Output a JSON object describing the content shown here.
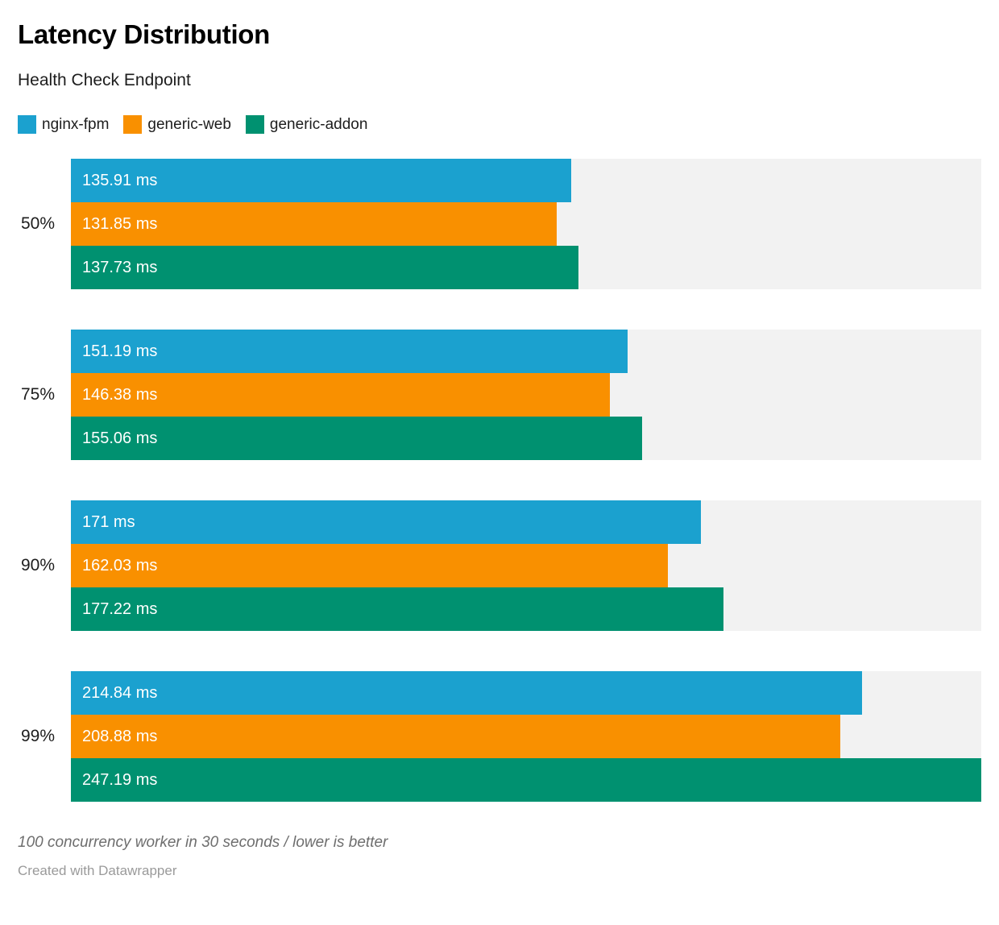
{
  "header": {
    "title": "Latency Distribution",
    "subtitle": "Health Check Endpoint"
  },
  "chart_data": {
    "type": "bar",
    "orientation": "horizontal",
    "title": "Latency Distribution",
    "subtitle": "Health Check Endpoint",
    "xlabel": "",
    "ylabel": "",
    "value_unit": "ms",
    "xlim": [
      0,
      247.19
    ],
    "grid": false,
    "legend_position": "top-left",
    "track_color": "#f2f2f2",
    "categories": [
      "50%",
      "75%",
      "90%",
      "99%"
    ],
    "series": [
      {
        "name": "nginx-fpm",
        "color": "#1ba1cf",
        "values": [
          135.91,
          151.19,
          171,
          214.84
        ],
        "labels": [
          "135.91 ms",
          "151.19 ms",
          "171 ms",
          "214.84 ms"
        ]
      },
      {
        "name": "generic-web",
        "color": "#f99000",
        "values": [
          131.85,
          146.38,
          162.03,
          208.88
        ],
        "labels": [
          "131.85 ms",
          "146.38 ms",
          "162.03 ms",
          "208.88 ms"
        ]
      },
      {
        "name": "generic-addon",
        "color": "#009170",
        "values": [
          137.73,
          155.06,
          177.22,
          247.19
        ],
        "labels": [
          "137.73 ms",
          "155.06 ms",
          "177.22 ms",
          "247.19 ms"
        ]
      }
    ]
  },
  "footer": {
    "notes": "100 concurrency worker in 30 seconds / lower is better",
    "attribution": "Created with Datawrapper"
  }
}
